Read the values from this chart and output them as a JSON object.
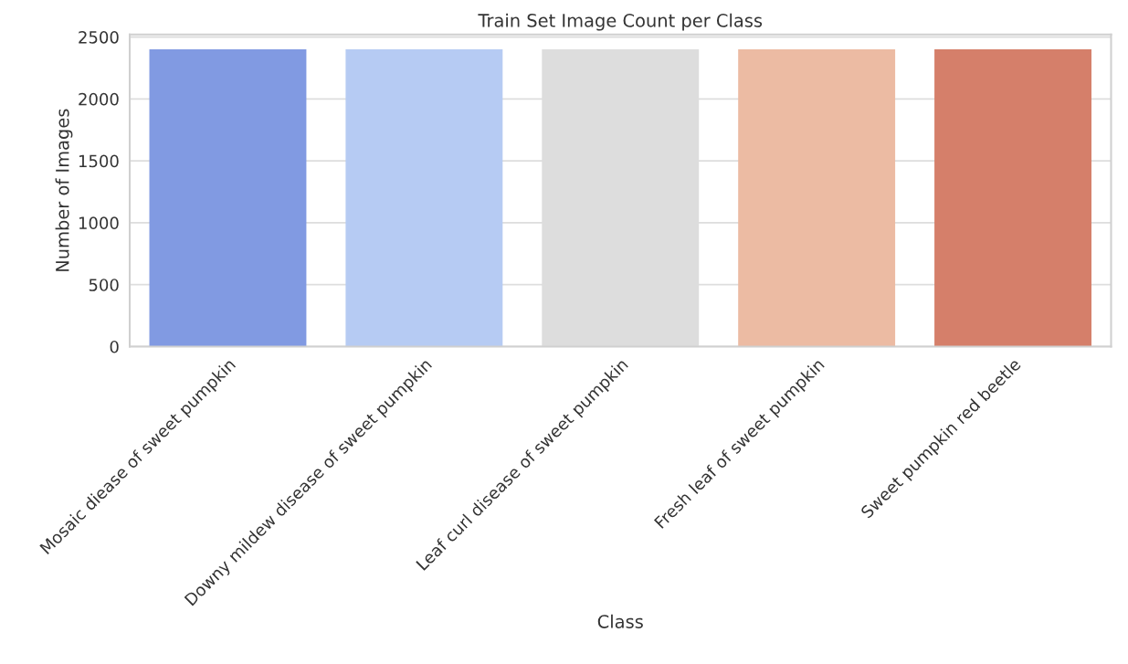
{
  "chart_data": {
    "type": "bar",
    "title": "Train Set Image Count per Class",
    "xlabel": "Class",
    "ylabel": "Number of Images",
    "categories": [
      "Mosaic diease of sweet pumpkin",
      "Downy mildew disease of sweet pumpkin",
      "Leaf curl disease of sweet pumpkin",
      "Fresh leaf of sweet pumpkin",
      "Sweet pumpkin red beetle"
    ],
    "values": [
      2400,
      2400,
      2400,
      2400,
      2400
    ],
    "colors": [
      "#819ae2",
      "#b6cbf3",
      "#dddddd",
      "#ecbba3",
      "#d57f6a"
    ],
    "ylim": [
      0,
      2520
    ],
    "yticks": [
      0,
      500,
      1000,
      1500,
      2000,
      2500
    ],
    "grid": "y"
  }
}
